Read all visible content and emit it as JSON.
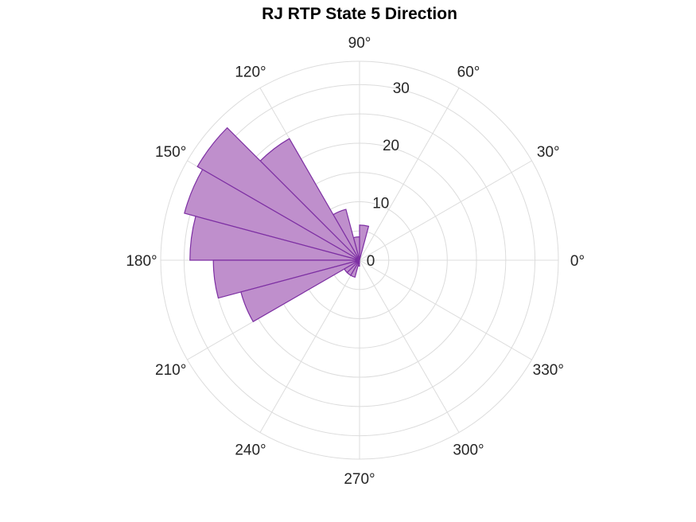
{
  "chart_data": {
    "type": "polar-histogram",
    "title": "RJ  RTP State 5 Direction",
    "angle_unit": "°",
    "angle_ticks": [
      "0°",
      "30°",
      "60°",
      "90°",
      "120°",
      "150°",
      "180°",
      "210°",
      "240°",
      "270°",
      "300°",
      "330°"
    ],
    "angle_tick_values": [
      0,
      30,
      60,
      90,
      120,
      150,
      180,
      210,
      240,
      270,
      300,
      330
    ],
    "radial_ticks": [
      "0",
      "10",
      "20",
      "30"
    ],
    "radial_tick_values": [
      0,
      10,
      20,
      30
    ],
    "rlim": [
      0,
      34
    ],
    "grid": true,
    "bin_width_deg": 15,
    "bins": [
      {
        "start": 75,
        "end": 90,
        "value": 6
      },
      {
        "start": 90,
        "end": 105,
        "value": 4
      },
      {
        "start": 105,
        "end": 120,
        "value": 9
      },
      {
        "start": 120,
        "end": 135,
        "value": 24
      },
      {
        "start": 135,
        "end": 150,
        "value": 32
      },
      {
        "start": 150,
        "end": 165,
        "value": 31
      },
      {
        "start": 165,
        "end": 180,
        "value": 29
      },
      {
        "start": 180,
        "end": 195,
        "value": 25
      },
      {
        "start": 195,
        "end": 210,
        "value": 21
      },
      {
        "start": 210,
        "end": 225,
        "value": 3
      },
      {
        "start": 225,
        "end": 240,
        "value": 3
      },
      {
        "start": 240,
        "end": 255,
        "value": 3
      },
      {
        "start": 255,
        "end": 270,
        "value": 1
      }
    ],
    "fill_color": "#bf8fcc",
    "edge_color": "#7d2fa3",
    "grid_color": "#dcdcdc"
  }
}
